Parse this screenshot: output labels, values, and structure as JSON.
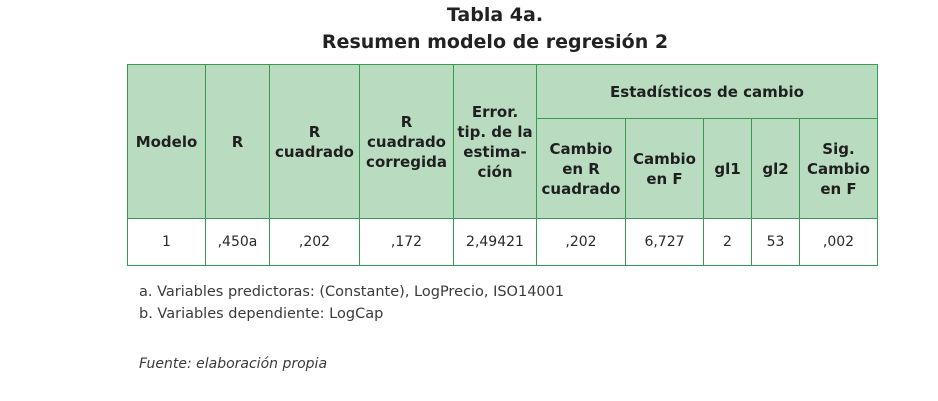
{
  "title": {
    "line1": "Tabla 4a.",
    "line2": "Resumen modelo de regresión 2"
  },
  "table": {
    "headers": {
      "modelo": "Modelo",
      "r": "R",
      "r_cuadrado": "R cuadrado",
      "r_cuadrado_corregida": "R cuadrado corregida",
      "error_tip": "Error. tip. de la estima- ción",
      "estadisticos_cambio": "Estadísticos de cambio",
      "cambio_r_cuadrado": "Cambio en R cuadrado",
      "cambio_f": "Cambio en F",
      "gl1": "gl1",
      "gl2": "gl2",
      "sig_cambio_f": "Sig. Cambio en F"
    },
    "row": {
      "modelo": "1",
      "r": ",450a",
      "r_cuadrado": ",202",
      "r_cuadrado_corregida": ",172",
      "error_tip": "2,49421",
      "cambio_r_cuadrado": ",202",
      "cambio_f": "6,727",
      "gl1": "2",
      "gl2": "53",
      "sig_cambio_f": ",002"
    }
  },
  "notes": {
    "a": "a. Variables predictoras: (Constante), LogPrecio, ISO14001",
    "b": "b. Variables dependiente: LogCap"
  },
  "source": "Fuente: elaboración propia",
  "colors": {
    "header_fill": "#b9dcc1",
    "border": "#3a9a55"
  }
}
